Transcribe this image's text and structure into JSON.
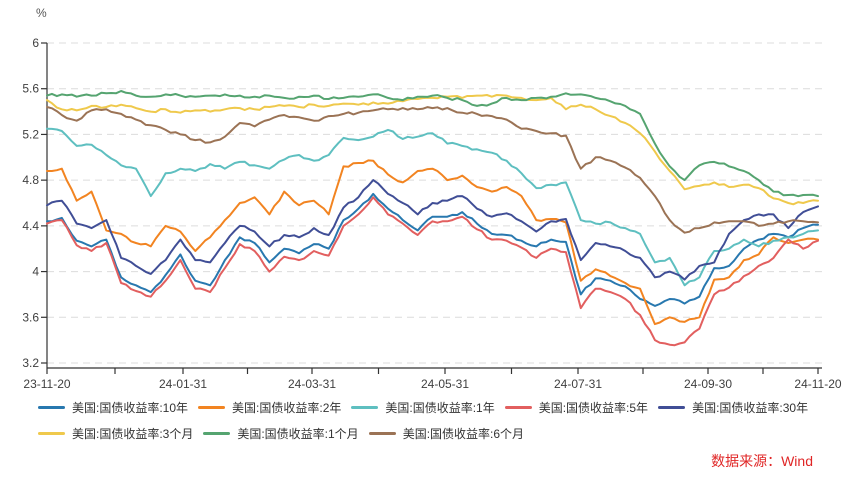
{
  "chart": {
    "unit_label": "%",
    "source_note": "数据来源：Wind",
    "axis_color": "#333333",
    "grid_color": "#dcdcdc",
    "tick_label_color": "#404040",
    "source_note_color": "#e02626"
  },
  "chart_data": {
    "type": "line",
    "title": "",
    "xlabel": "",
    "ylabel": "%",
    "ylim": [
      3.2,
      6.0
    ],
    "yticks": [
      6,
      5.6,
      5.2,
      4.8,
      4.4,
      4,
      3.6,
      3.2
    ],
    "xtick_labels": [
      "23-11-20",
      "24-01-31",
      "24-03-31",
      "24-05-31",
      "24-07-31",
      "24-09-30",
      "24-11-20"
    ],
    "grid": "horizontal-dashed",
    "legend_position": "bottom-left",
    "legend_rows": [
      [
        0,
        1,
        2,
        3,
        4
      ],
      [
        5,
        6,
        7
      ]
    ],
    "x_start": "23-11-20",
    "x_end": "24-11-20",
    "sampling": "weekly",
    "series": [
      {
        "name": "美国:国债收益率:10年",
        "color": "#2878af",
        "values": [
          4.44,
          4.47,
          4.27,
          4.22,
          4.28,
          3.95,
          3.88,
          3.82,
          3.97,
          4.15,
          3.92,
          3.88,
          4.1,
          4.3,
          4.25,
          4.08,
          4.2,
          4.16,
          4.24,
          4.2,
          4.45,
          4.55,
          4.68,
          4.55,
          4.45,
          4.36,
          4.48,
          4.48,
          4.52,
          4.42,
          4.33,
          4.32,
          4.27,
          4.22,
          4.28,
          4.26,
          3.8,
          3.94,
          3.92,
          3.87,
          3.76,
          3.7,
          3.76,
          3.72,
          3.78,
          4.03,
          4.05,
          4.2,
          4.28,
          4.33,
          4.3,
          4.38,
          4.41
        ]
      },
      {
        "name": "美国:国债收益率:2年",
        "color": "#f28421",
        "values": [
          4.88,
          4.9,
          4.62,
          4.7,
          4.36,
          4.33,
          4.25,
          4.22,
          4.4,
          4.35,
          4.18,
          4.3,
          4.45,
          4.6,
          4.65,
          4.5,
          4.7,
          4.58,
          4.62,
          4.5,
          4.92,
          4.95,
          4.97,
          4.85,
          4.78,
          4.88,
          4.9,
          4.8,
          4.84,
          4.74,
          4.7,
          4.74,
          4.66,
          4.45,
          4.46,
          4.43,
          3.92,
          4.02,
          3.96,
          3.9,
          3.85,
          3.54,
          3.6,
          3.56,
          3.6,
          3.93,
          3.95,
          4.1,
          4.15,
          4.3,
          4.25,
          4.28,
          4.28
        ]
      },
      {
        "name": "美国:国债收益率:1年",
        "color": "#5ebfc0",
        "values": [
          5.25,
          5.23,
          5.1,
          5.11,
          5.02,
          4.93,
          4.9,
          4.66,
          4.86,
          4.9,
          4.88,
          4.94,
          4.9,
          4.96,
          4.93,
          4.9,
          4.98,
          5.02,
          4.97,
          5.02,
          5.17,
          5.15,
          5.18,
          5.24,
          5.16,
          5.18,
          5.21,
          5.12,
          5.1,
          5.07,
          5.04,
          4.97,
          4.86,
          4.73,
          4.76,
          4.78,
          4.45,
          4.42,
          4.43,
          4.38,
          4.33,
          4.08,
          4.12,
          3.88,
          3.95,
          4.18,
          4.2,
          4.28,
          4.22,
          4.27,
          4.3,
          4.33,
          4.36
        ]
      },
      {
        "name": "美国:国债收益率:5年",
        "color": "#e25f5f",
        "values": [
          4.42,
          4.45,
          4.23,
          4.18,
          4.25,
          3.9,
          3.83,
          3.78,
          3.92,
          4.1,
          3.85,
          3.82,
          4.03,
          4.24,
          4.18,
          4.0,
          4.13,
          4.1,
          4.18,
          4.14,
          4.4,
          4.5,
          4.65,
          4.5,
          4.42,
          4.32,
          4.44,
          4.44,
          4.48,
          4.37,
          4.28,
          4.27,
          4.21,
          4.12,
          4.2,
          4.17,
          3.68,
          3.85,
          3.82,
          3.76,
          3.62,
          3.4,
          3.36,
          3.38,
          3.5,
          3.8,
          3.86,
          3.96,
          4.05,
          4.12,
          4.28,
          4.2,
          4.27
        ]
      },
      {
        "name": "美国:国债收益率:30年",
        "color": "#404e96",
        "values": [
          4.58,
          4.62,
          4.42,
          4.38,
          4.45,
          4.12,
          4.05,
          3.98,
          4.1,
          4.28,
          4.1,
          4.08,
          4.25,
          4.4,
          4.35,
          4.22,
          4.32,
          4.3,
          4.38,
          4.32,
          4.56,
          4.65,
          4.8,
          4.68,
          4.6,
          4.5,
          4.6,
          4.62,
          4.66,
          4.55,
          4.48,
          4.51,
          4.44,
          4.35,
          4.44,
          4.46,
          4.1,
          4.25,
          4.22,
          4.18,
          4.12,
          3.95,
          4.0,
          3.93,
          4.05,
          4.08,
          4.33,
          4.45,
          4.5,
          4.5,
          4.38,
          4.52,
          4.57
        ]
      },
      {
        "name": "美国:国债收益率:3个月",
        "color": "#efc94c",
        "values": [
          5.5,
          5.42,
          5.41,
          5.45,
          5.44,
          5.46,
          5.43,
          5.4,
          5.42,
          5.39,
          5.41,
          5.4,
          5.42,
          5.43,
          5.42,
          5.44,
          5.45,
          5.44,
          5.46,
          5.45,
          5.47,
          5.46,
          5.48,
          5.47,
          5.49,
          5.51,
          5.52,
          5.53,
          5.52,
          5.54,
          5.53,
          5.54,
          5.52,
          5.5,
          5.52,
          5.42,
          5.46,
          5.42,
          5.36,
          5.3,
          5.21,
          5.05,
          4.88,
          4.72,
          4.75,
          4.78,
          4.74,
          4.76,
          4.73,
          4.64,
          4.6,
          4.6,
          4.62
        ]
      },
      {
        "name": "美国:国债收益率:1个月",
        "color": "#55a470",
        "values": [
          5.54,
          5.55,
          5.53,
          5.54,
          5.56,
          5.58,
          5.54,
          5.53,
          5.55,
          5.54,
          5.53,
          5.54,
          5.55,
          5.54,
          5.53,
          5.54,
          5.52,
          5.53,
          5.54,
          5.51,
          5.52,
          5.53,
          5.55,
          5.52,
          5.5,
          5.53,
          5.54,
          5.52,
          5.5,
          5.45,
          5.47,
          5.52,
          5.5,
          5.52,
          5.53,
          5.56,
          5.55,
          5.52,
          5.49,
          5.45,
          5.38,
          5.12,
          4.92,
          4.8,
          4.93,
          4.96,
          4.92,
          4.88,
          4.8,
          4.7,
          4.67,
          4.67,
          4.66
        ]
      },
      {
        "name": "美国:国债收益率:6个月",
        "color": "#9b7355",
        "values": [
          5.44,
          5.37,
          5.32,
          5.41,
          5.42,
          5.38,
          5.33,
          5.28,
          5.24,
          5.2,
          5.15,
          5.13,
          5.18,
          5.3,
          5.27,
          5.33,
          5.37,
          5.35,
          5.32,
          5.36,
          5.38,
          5.39,
          5.41,
          5.42,
          5.43,
          5.42,
          5.43,
          5.43,
          5.39,
          5.38,
          5.36,
          5.33,
          5.25,
          5.23,
          5.21,
          5.19,
          4.9,
          5.0,
          4.97,
          4.91,
          4.82,
          4.66,
          4.45,
          4.34,
          4.38,
          4.43,
          4.44,
          4.44,
          4.4,
          4.42,
          4.44,
          4.44,
          4.43
        ]
      }
    ]
  }
}
